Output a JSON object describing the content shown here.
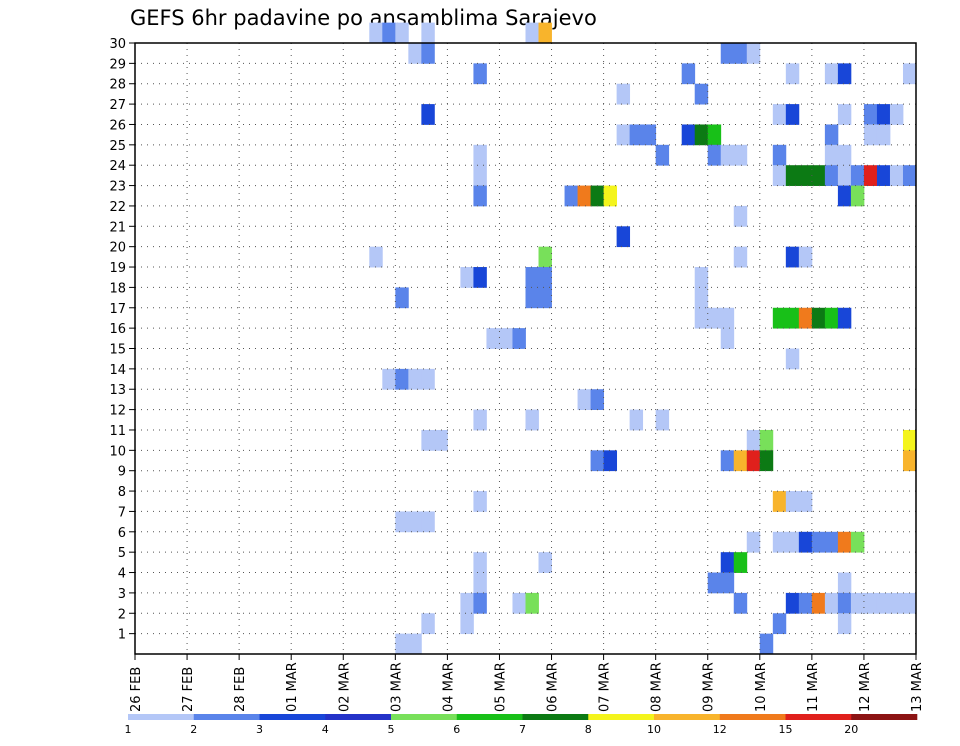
{
  "chart_data": {
    "type": "heatmap",
    "title": "GEFS 6hr padavine po ansamblima Sarajevo",
    "x_tick_labels": [
      "26 FEB",
      "27 FEB",
      "28 FEB",
      "01 MAR",
      "02 MAR",
      "03 MAR",
      "04 MAR",
      "05 MAR",
      "06 MAR",
      "07 MAR",
      "08 MAR",
      "09 MAR",
      "10 MAR",
      "11 MAR",
      "12 MAR",
      "13 MAR"
    ],
    "x_steps_per_day": 4,
    "x_range_steps": [
      0,
      60
    ],
    "y_range": [
      0,
      30
    ],
    "y_tick_labels": [
      "1",
      "2",
      "3",
      "4",
      "5",
      "6",
      "7",
      "8",
      "9",
      "10",
      "11",
      "12",
      "13",
      "14",
      "15",
      "16",
      "17",
      "18",
      "19",
      "20",
      "21",
      "22",
      "23",
      "24",
      "25",
      "26",
      "27",
      "28",
      "29",
      "30"
    ],
    "grid": "dotted",
    "legend": {
      "position": "bottom",
      "labels": [
        "1",
        "2",
        "3",
        "4",
        "5",
        "6",
        "7",
        "8",
        "10",
        "12",
        "15",
        "20"
      ],
      "colors": [
        "#b4c7f7",
        "#5a84ea",
        "#1846d8",
        "#2432c8",
        "#78e05a",
        "#18c018",
        "#0c7a14",
        "#f4f41c",
        "#f8b42c",
        "#f07a1c",
        "#e0201c",
        "#8c1414"
      ]
    },
    "cells": [
      [
        30,
        18,
        0
      ],
      [
        30,
        19,
        1
      ],
      [
        30,
        20,
        0
      ],
      [
        30,
        22,
        0
      ],
      [
        30,
        30,
        0
      ],
      [
        30,
        31,
        8
      ],
      [
        29,
        21,
        0
      ],
      [
        29,
        22,
        1
      ],
      [
        29,
        45,
        1
      ],
      [
        29,
        46,
        1
      ],
      [
        29,
        47,
        0
      ],
      [
        28,
        26,
        1
      ],
      [
        28,
        42,
        1
      ],
      [
        28,
        50,
        0
      ],
      [
        28,
        53,
        0
      ],
      [
        28,
        54,
        2
      ],
      [
        28,
        59,
        0
      ],
      [
        27,
        37,
        0
      ],
      [
        27,
        43,
        1
      ],
      [
        26,
        22,
        2
      ],
      [
        26,
        49,
        0
      ],
      [
        26,
        50,
        2
      ],
      [
        26,
        54,
        0
      ],
      [
        26,
        56,
        1
      ],
      [
        26,
        57,
        2
      ],
      [
        26,
        58,
        0
      ],
      [
        25,
        37,
        0
      ],
      [
        25,
        38,
        1
      ],
      [
        25,
        39,
        1
      ],
      [
        25,
        42,
        2
      ],
      [
        25,
        43,
        6
      ],
      [
        25,
        44,
        5
      ],
      [
        25,
        53,
        1
      ],
      [
        25,
        56,
        0
      ],
      [
        25,
        57,
        0
      ],
      [
        24,
        26,
        0
      ],
      [
        24,
        40,
        1
      ],
      [
        24,
        44,
        1
      ],
      [
        24,
        45,
        0
      ],
      [
        24,
        46,
        0
      ],
      [
        24,
        49,
        1
      ],
      [
        24,
        53,
        0
      ],
      [
        24,
        54,
        0
      ],
      [
        23,
        26,
        0
      ],
      [
        23,
        49,
        0
      ],
      [
        23,
        50,
        6
      ],
      [
        23,
        51,
        6
      ],
      [
        23,
        52,
        6
      ],
      [
        23,
        53,
        1
      ],
      [
        23,
        54,
        0
      ],
      [
        23,
        55,
        1
      ],
      [
        23,
        56,
        10
      ],
      [
        23,
        57,
        2
      ],
      [
        23,
        58,
        0
      ],
      [
        23,
        59,
        1
      ],
      [
        22,
        26,
        1
      ],
      [
        22,
        33,
        1
      ],
      [
        22,
        34,
        9
      ],
      [
        22,
        35,
        6
      ],
      [
        22,
        36,
        7
      ],
      [
        22,
        54,
        2
      ],
      [
        22,
        55,
        4
      ],
      [
        21,
        46,
        0
      ],
      [
        20,
        37,
        2
      ],
      [
        19,
        18,
        0
      ],
      [
        19,
        31,
        4
      ],
      [
        19,
        46,
        0
      ],
      [
        19,
        50,
        2
      ],
      [
        19,
        51,
        0
      ],
      [
        18,
        25,
        0
      ],
      [
        18,
        26,
        2
      ],
      [
        18,
        30,
        1
      ],
      [
        18,
        31,
        1
      ],
      [
        18,
        43,
        0
      ],
      [
        17,
        20,
        1
      ],
      [
        17,
        30,
        1
      ],
      [
        17,
        31,
        1
      ],
      [
        17,
        43,
        0
      ],
      [
        16,
        43,
        0
      ],
      [
        16,
        44,
        0
      ],
      [
        16,
        45,
        0
      ],
      [
        16,
        49,
        5
      ],
      [
        16,
        50,
        5
      ],
      [
        16,
        51,
        9
      ],
      [
        16,
        52,
        6
      ],
      [
        16,
        53,
        5
      ],
      [
        16,
        54,
        2
      ],
      [
        15,
        27,
        0
      ],
      [
        15,
        28,
        0
      ],
      [
        15,
        29,
        1
      ],
      [
        15,
        45,
        0
      ],
      [
        14,
        50,
        0
      ],
      [
        13,
        19,
        0
      ],
      [
        13,
        20,
        1
      ],
      [
        13,
        21,
        0
      ],
      [
        13,
        22,
        0
      ],
      [
        12,
        34,
        0
      ],
      [
        12,
        35,
        1
      ],
      [
        11,
        26,
        0
      ],
      [
        11,
        30,
        0
      ],
      [
        11,
        38,
        0
      ],
      [
        11,
        40,
        0
      ],
      [
        10,
        22,
        0
      ],
      [
        10,
        23,
        0
      ],
      [
        10,
        47,
        0
      ],
      [
        10,
        48,
        4
      ],
      [
        10,
        59,
        7
      ],
      [
        9,
        35,
        1
      ],
      [
        9,
        36,
        2
      ],
      [
        9,
        45,
        1
      ],
      [
        9,
        46,
        8
      ],
      [
        9,
        47,
        10
      ],
      [
        9,
        48,
        6
      ],
      [
        9,
        59,
        8
      ],
      [
        7,
        26,
        0
      ],
      [
        7,
        49,
        8
      ],
      [
        7,
        50,
        0
      ],
      [
        7,
        51,
        0
      ],
      [
        6,
        20,
        0
      ],
      [
        6,
        21,
        0
      ],
      [
        6,
        22,
        0
      ],
      [
        5,
        47,
        0
      ],
      [
        5,
        49,
        0
      ],
      [
        5,
        50,
        0
      ],
      [
        5,
        51,
        2
      ],
      [
        5,
        52,
        1
      ],
      [
        5,
        53,
        1
      ],
      [
        5,
        54,
        9
      ],
      [
        5,
        55,
        4
      ],
      [
        4,
        26,
        0
      ],
      [
        4,
        31,
        0
      ],
      [
        4,
        45,
        2
      ],
      [
        4,
        46,
        5
      ],
      [
        3,
        26,
        0
      ],
      [
        3,
        44,
        1
      ],
      [
        3,
        45,
        1
      ],
      [
        3,
        54,
        0
      ],
      [
        2,
        25,
        0
      ],
      [
        2,
        26,
        1
      ],
      [
        2,
        29,
        0
      ],
      [
        2,
        30,
        4
      ],
      [
        2,
        46,
        1
      ],
      [
        2,
        50,
        2
      ],
      [
        2,
        51,
        1
      ],
      [
        2,
        52,
        9
      ],
      [
        2,
        53,
        0
      ],
      [
        2,
        54,
        1
      ],
      [
        2,
        55,
        0
      ],
      [
        2,
        56,
        0
      ],
      [
        2,
        57,
        0
      ],
      [
        2,
        58,
        0
      ],
      [
        2,
        59,
        0
      ],
      [
        1,
        22,
        0
      ],
      [
        1,
        25,
        0
      ],
      [
        1,
        49,
        1
      ],
      [
        1,
        54,
        0
      ],
      [
        0,
        20,
        0
      ],
      [
        0,
        21,
        0
      ],
      [
        0,
        48,
        1
      ]
    ]
  }
}
